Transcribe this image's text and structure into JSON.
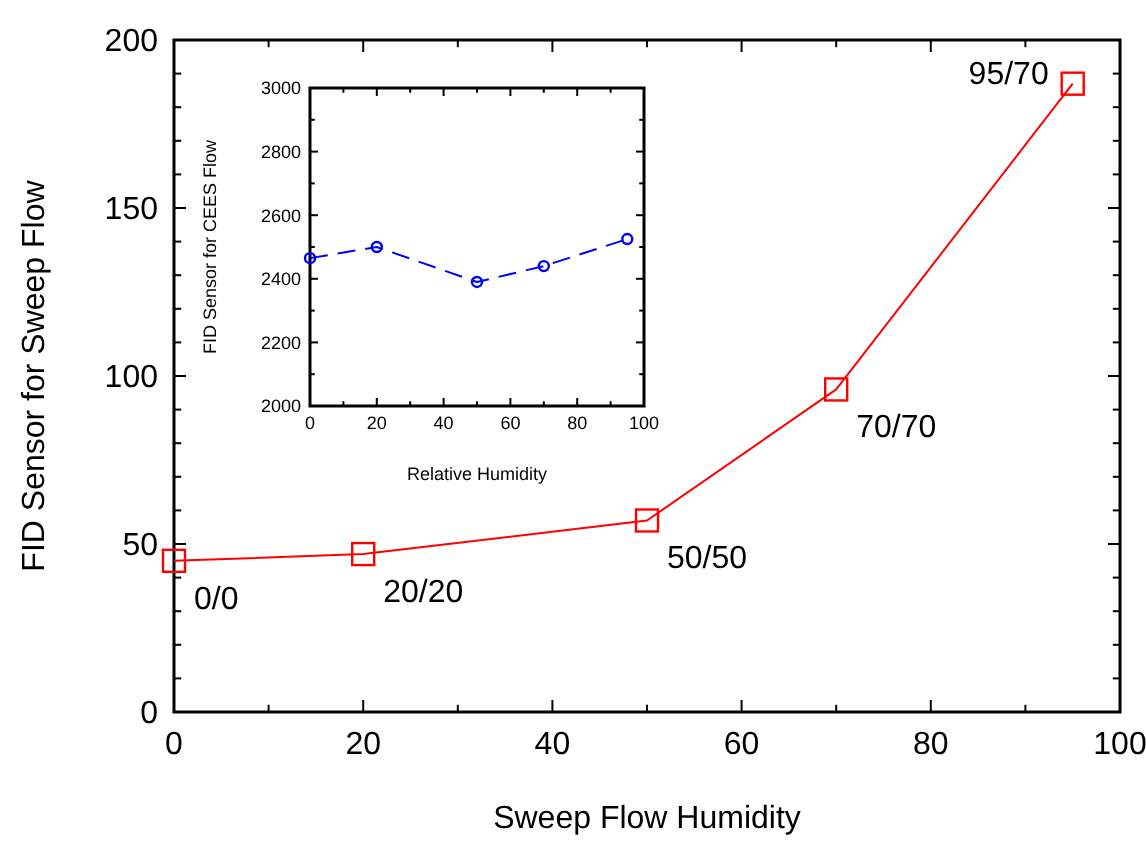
{
  "chart_data": [
    {
      "type": "line",
      "xlabel": "Sweep Flow Humidity",
      "ylabel": "FID Sensor for Sweep Flow",
      "x": [
        0,
        20,
        50,
        70,
        95
      ],
      "series": [
        {
          "color": "#ff0000",
          "values": [
            45,
            47,
            57,
            96,
            187
          ],
          "marker": "square",
          "line_style": "solid"
        }
      ],
      "xlim": [
        0,
        100
      ],
      "ylim": [
        0,
        200
      ],
      "xticks": [
        0,
        {
          "value": 10,
          "label": null
        },
        20,
        {
          "value": 30,
          "label": null
        },
        40,
        {
          "value": 50,
          "label": null
        },
        60,
        {
          "value": 70,
          "label": null
        },
        80,
        {
          "value": 90,
          "label": null
        },
        100
      ],
      "yticks": [
        0,
        {
          "value": 10,
          "label": null
        },
        {
          "value": 20,
          "label": null
        },
        {
          "value": 30,
          "label": null
        },
        {
          "value": 40,
          "label": null
        },
        50,
        {
          "value": 60,
          "label": null
        },
        {
          "value": 70,
          "label": null
        },
        {
          "value": 80,
          "label": null
        },
        {
          "value": 90,
          "label": null
        },
        100,
        {
          "value": 110,
          "label": null
        },
        {
          "value": 120,
          "label": null
        },
        {
          "value": 130,
          "label": null
        },
        {
          "value": 140,
          "label": null
        },
        150,
        {
          "value": 160,
          "label": null
        },
        {
          "value": 170,
          "label": null
        },
        {
          "value": 180,
          "label": null
        },
        {
          "value": 190,
          "label": null
        },
        200
      ],
      "annotations": [
        {
          "text": "0/0",
          "x": 0,
          "y": 45
        },
        {
          "text": "20/20",
          "x": 20,
          "y": 47
        },
        {
          "text": "50/50",
          "x": 50,
          "y": 57
        },
        {
          "text": "70/70",
          "x": 70,
          "y": 96
        },
        {
          "text": "95/70",
          "x": 95,
          "y": 187
        }
      ]
    },
    {
      "type": "line",
      "xlabel": "Relative Humidity",
      "ylabel": "FID Sensor for CEES Flow",
      "x": [
        0,
        20,
        50,
        70,
        95
      ],
      "series": [
        {
          "color": "#0000ff",
          "values": [
            2465,
            2500,
            2390,
            2440,
            2525
          ],
          "marker": "circle",
          "line_style": "dashed"
        }
      ],
      "xlim": [
        0,
        100
      ],
      "ylim": [
        2000,
        3000
      ],
      "xticks": [
        0,
        {
          "value": 10,
          "label": null
        },
        20,
        {
          "value": 30,
          "label": null
        },
        40,
        {
          "value": 50,
          "label": null
        },
        60,
        {
          "value": 70,
          "label": null
        },
        80,
        {
          "value": 90,
          "label": null
        },
        100
      ],
      "yticks": [
        2000,
        {
          "value": 2100,
          "label": null
        },
        2200,
        {
          "value": 2300,
          "label": null
        },
        2400,
        {
          "value": 2500,
          "label": null
        },
        2600,
        {
          "value": 2700,
          "label": null
        },
        2800,
        {
          "value": 2900,
          "label": null
        },
        3000
      ]
    }
  ]
}
